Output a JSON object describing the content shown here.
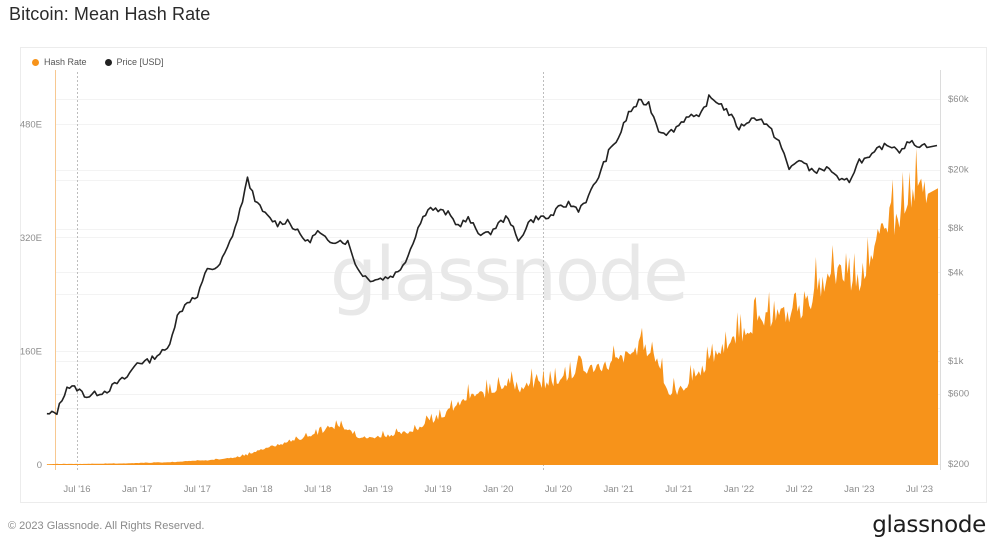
{
  "header": {
    "title": "Bitcoin: Mean Hash Rate"
  },
  "legend": [
    {
      "label": "Hash Rate",
      "color": "#f7931a"
    },
    {
      "label": "Price [USD]",
      "color": "#222222"
    }
  ],
  "watermark": "glassnode",
  "footer": {
    "copyright": "© 2023 Glassnode. All Rights Reserved.",
    "brand": "glassnode"
  },
  "chart_data": {
    "type": "area",
    "title": "Bitcoin: Mean Hash Rate",
    "xlabel": "",
    "ylabel_left": "Hash Rate",
    "ylabel_right": "Price [USD]",
    "left_axis": {
      "ticks": [
        "0",
        "160E",
        "320E",
        "480E"
      ],
      "ylim": [
        0,
        530
      ],
      "unit": "EH/s"
    },
    "right_axis": {
      "scale": "log",
      "ticks": [
        "$200",
        "$600",
        "$1k",
        "$4k",
        "$8k",
        "$20k",
        "$60k"
      ],
      "ylim": [
        200,
        80000
      ]
    },
    "x_ticks": [
      "Jul '16",
      "Jan '17",
      "Jul '17",
      "Jan '18",
      "Jul '18",
      "Jan '19",
      "Jul '19",
      "Jan '20",
      "Jul '20",
      "Jan '21",
      "Jul '21",
      "Jan '22",
      "Jul '22",
      "Jan '23",
      "Jul '23"
    ],
    "grid": true,
    "legend_position": "top-left",
    "vertical_markers": [
      "Jul '16 (halving)",
      "May '20 (halving)"
    ],
    "x": [
      "2016-04",
      "2016-05",
      "2016-06",
      "2016-07",
      "2016-08",
      "2016-09",
      "2016-10",
      "2016-11",
      "2016-12",
      "2017-01",
      "2017-02",
      "2017-03",
      "2017-04",
      "2017-05",
      "2017-06",
      "2017-07",
      "2017-08",
      "2017-09",
      "2017-10",
      "2017-11",
      "2017-12",
      "2018-01",
      "2018-02",
      "2018-03",
      "2018-04",
      "2018-05",
      "2018-06",
      "2018-07",
      "2018-08",
      "2018-09",
      "2018-10",
      "2018-11",
      "2018-12",
      "2019-01",
      "2019-02",
      "2019-03",
      "2019-04",
      "2019-05",
      "2019-06",
      "2019-07",
      "2019-08",
      "2019-09",
      "2019-10",
      "2019-11",
      "2019-12",
      "2020-01",
      "2020-02",
      "2020-03",
      "2020-04",
      "2020-05",
      "2020-06",
      "2020-07",
      "2020-08",
      "2020-09",
      "2020-10",
      "2020-11",
      "2020-12",
      "2021-01",
      "2021-02",
      "2021-03",
      "2021-04",
      "2021-05",
      "2021-06",
      "2021-07",
      "2021-08",
      "2021-09",
      "2021-10",
      "2021-11",
      "2021-12",
      "2022-01",
      "2022-02",
      "2022-03",
      "2022-04",
      "2022-05",
      "2022-06",
      "2022-07",
      "2022-08",
      "2022-09",
      "2022-10",
      "2022-11",
      "2022-12",
      "2023-01",
      "2023-02",
      "2023-03",
      "2023-04",
      "2023-05",
      "2023-06",
      "2023-07",
      "2023-08"
    ],
    "series": [
      {
        "name": "Hash Rate",
        "unit": "EH/s",
        "values": [
          1.2,
          1.4,
          1.5,
          1.5,
          1.6,
          1.8,
          2.0,
          2.1,
          2.3,
          2.8,
          3.0,
          3.4,
          3.8,
          4.5,
          5.5,
          6.0,
          6.5,
          8.0,
          9.5,
          11,
          14,
          20,
          25,
          28,
          32,
          36,
          40,
          45,
          50,
          55,
          52,
          40,
          38,
          40,
          42,
          44,
          46,
          52,
          60,
          66,
          75,
          85,
          95,
          100,
          100,
          110,
          118,
          105,
          112,
          115,
          112,
          120,
          125,
          128,
          135,
          140,
          140,
          148,
          155,
          165,
          160,
          145,
          100,
          105,
          115,
          130,
          145,
          160,
          170,
          180,
          195,
          200,
          205,
          215,
          210,
          215,
          230,
          250,
          260,
          270,
          255,
          260,
          290,
          320,
          330,
          350,
          360,
          385,
          390
        ]
      },
      {
        "name": "Price [USD]",
        "unit": "USD",
        "values": [
          430,
          450,
          670,
          650,
          575,
          605,
          630,
          710,
          780,
          980,
          990,
          1100,
          1200,
          2000,
          2550,
          2700,
          4300,
          4200,
          5800,
          9000,
          17000,
          11500,
          9500,
          8500,
          9000,
          7500,
          6400,
          7500,
          6500,
          6600,
          6400,
          4200,
          3600,
          3600,
          3700,
          4000,
          5200,
          8000,
          11000,
          10500,
          10000,
          8300,
          9200,
          7500,
          7200,
          8500,
          9600,
          6400,
          8700,
          9500,
          9300,
          10800,
          11700,
          10700,
          13000,
          18000,
          26000,
          33000,
          48000,
          57000,
          56000,
          37000,
          35000,
          40000,
          47000,
          44000,
          61000,
          57000,
          48000,
          38000,
          43000,
          45000,
          38000,
          31000,
          20000,
          23500,
          20000,
          19500,
          20500,
          16500,
          16800,
          23000,
          23500,
          28000,
          29500,
          27000,
          30500,
          29200,
          29000
        ]
      }
    ]
  }
}
